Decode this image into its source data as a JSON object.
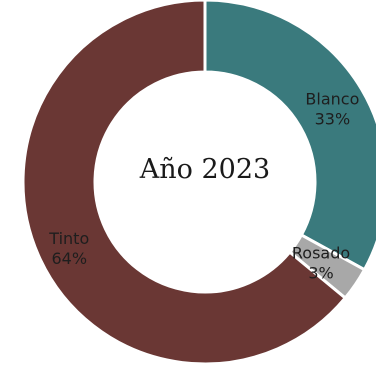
{
  "chart_data": {
    "type": "donut",
    "title": "Año 2023",
    "series": [
      {
        "name": "Blanco",
        "value": 33,
        "value_label": "33%",
        "color": "#3a7a7d"
      },
      {
        "name": "Rosado",
        "value": 3,
        "value_label": "3%",
        "color": "#a8a8a8"
      },
      {
        "name": "Tinto",
        "value": 64,
        "value_label": "64%",
        "color": "#6a3734"
      }
    ]
  }
}
